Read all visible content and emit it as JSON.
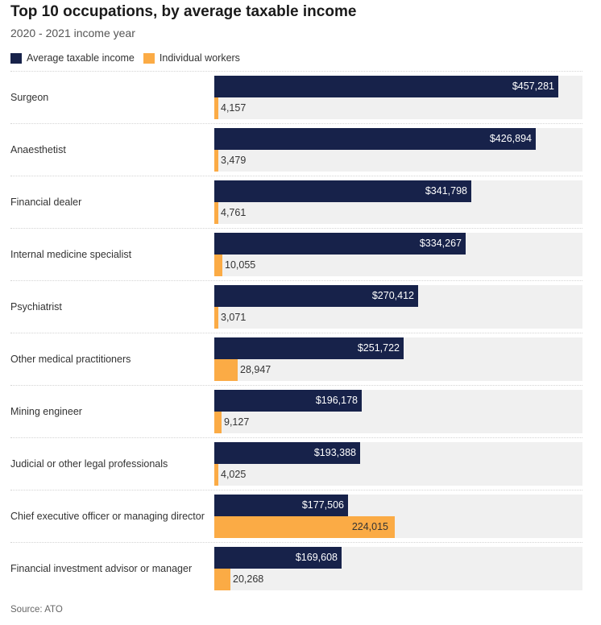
{
  "chart_data": {
    "type": "bar",
    "orientation": "horizontal",
    "title": "Top 10 occupations, by average taxable income",
    "subtitle": "2020 - 2021 income year",
    "legend_placement": "top-left",
    "categories": [
      "Surgeon",
      "Anaesthetist",
      "Financial dealer",
      "Internal medicine specialist",
      "Psychiatrist",
      "Other medical practitioners",
      "Mining engineer",
      "Judicial or other legal professionals",
      "Chief executive officer or managing director",
      "Financial investment advisor or manager"
    ],
    "series": [
      {
        "name": "Average taxable income",
        "color": "#17224a",
        "values": [
          457281,
          426894,
          341798,
          334267,
          270412,
          251722,
          196178,
          193388,
          177506,
          169608
        ],
        "labels": [
          "$457,281",
          "$426,894",
          "$341,798",
          "$334,267",
          "$270,412",
          "$251,722",
          "$196,178",
          "$193,388",
          "$177,506",
          "$169,608"
        ]
      },
      {
        "name": "Individual workers",
        "color": "#fbab45",
        "values": [
          4157,
          3479,
          4761,
          10055,
          3071,
          28947,
          9127,
          4025,
          224015,
          20268
        ],
        "labels": [
          "4,157",
          "3,479",
          "4,761",
          "10,055",
          "3,071",
          "28,947",
          "9,127",
          "4,025",
          "224,015",
          "20,268"
        ]
      }
    ],
    "source": "Source: ATO"
  }
}
